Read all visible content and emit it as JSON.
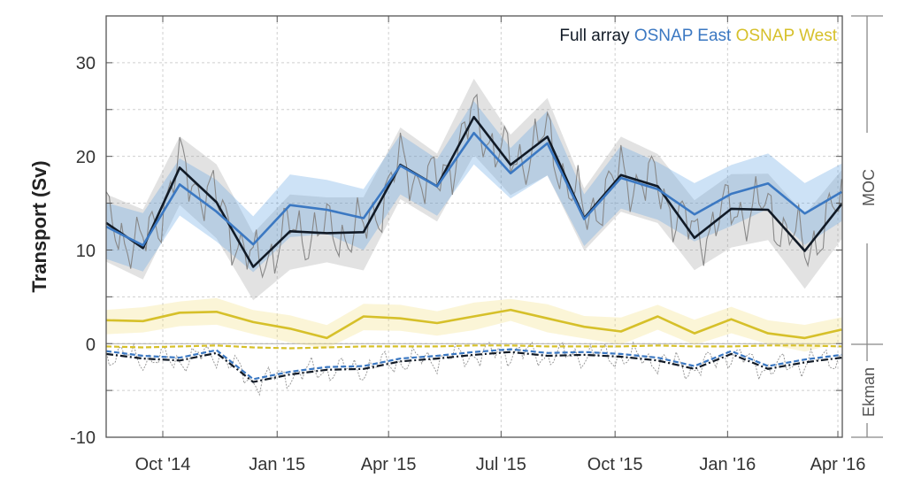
{
  "chart_data": {
    "type": "line",
    "title": "",
    "xlabel": "",
    "ylabel": "Transport (Sv)",
    "ylim": [
      -10,
      35
    ],
    "yticks": {
      "values": [
        -10,
        0,
        10,
        20,
        30
      ],
      "labels": [
        "-10",
        "0",
        "10",
        "20",
        "30"
      ],
      "minor_step": 5
    },
    "x_months": [
      "Aug 2014",
      "Sep 2014",
      "Oct 2014",
      "Nov 2014",
      "Dec 2014",
      "Jan 2015",
      "Feb 2015",
      "Mar 2015",
      "Apr 2015",
      "May 2015",
      "Jun 2015",
      "Jul 2015",
      "Aug 2015",
      "Sep 2015",
      "Oct 2015",
      "Nov 2015",
      "Dec 2015",
      "Jan 2016",
      "Feb 2016",
      "Mar 2016",
      "Apr 2016"
    ],
    "xlim_month_index": [
      0,
      20.02
    ],
    "xticks": {
      "labels": [
        "Oct '14",
        "Jan '15",
        "Apr '15",
        "Jul '15",
        "Oct '15",
        "Jan '16",
        "Apr '16"
      ],
      "month_index": [
        1.54,
        4.65,
        7.68,
        10.74,
        13.84,
        16.9,
        19.9
      ]
    },
    "grid": true,
    "legend": {
      "placement": "top-right",
      "entries": [
        "Full array",
        "OSNAP East",
        "OSNAP West"
      ]
    },
    "colors": {
      "full": "#111a26",
      "east": "#3b78c2",
      "west": "#d6c02a",
      "daily": "#888888"
    },
    "series": [
      {
        "name": "Full array",
        "component": "MOC",
        "values": [
          12.9,
          10.2,
          18.8,
          15.1,
          8.2,
          12.0,
          11.8,
          11.9,
          19.1,
          16.8,
          24.2,
          19.1,
          22.1,
          13.4,
          18.0,
          16.8,
          11.3,
          14.4,
          14.3,
          9.9,
          14.9
        ],
        "uncertainty": 3.6
      },
      {
        "name": "OSNAP East",
        "component": "MOC",
        "values": [
          12.5,
          10.5,
          17.0,
          14.1,
          10.6,
          14.8,
          14.3,
          13.4,
          19.0,
          16.8,
          22.5,
          18.2,
          21.4,
          13.3,
          17.7,
          16.5,
          13.8,
          16.0,
          17.1,
          13.9,
          16.2
        ],
        "uncertainty": 3.0
      },
      {
        "name": "OSNAP West",
        "component": "MOC",
        "values": [
          2.5,
          2.4,
          3.3,
          3.4,
          2.3,
          1.6,
          0.6,
          2.9,
          2.7,
          2.2,
          2.9,
          3.6,
          2.7,
          1.8,
          1.3,
          2.9,
          1.1,
          2.6,
          1.1,
          0.6,
          1.5
        ],
        "uncertainty": 1.3
      },
      {
        "name": "Full array",
        "component": "Ekman",
        "values": [
          -1.1,
          -1.6,
          -1.8,
          -1.0,
          -4.1,
          -3.3,
          -2.8,
          -2.7,
          -1.9,
          -1.6,
          -1.2,
          -0.9,
          -1.3,
          -1.2,
          -1.4,
          -1.8,
          -2.7,
          -1.1,
          -2.7,
          -2.0,
          -1.5
        ]
      },
      {
        "name": "OSNAP East",
        "component": "Ekman",
        "values": [
          -0.8,
          -1.3,
          -1.5,
          -0.7,
          -3.8,
          -3.0,
          -2.5,
          -2.4,
          -1.6,
          -1.3,
          -0.9,
          -0.6,
          -1.0,
          -0.9,
          -1.1,
          -1.5,
          -2.4,
          -0.8,
          -2.4,
          -1.7,
          -1.2
        ]
      },
      {
        "name": "OSNAP West",
        "component": "Ekman",
        "values": [
          -0.3,
          -0.4,
          -0.3,
          -0.2,
          -0.4,
          -0.5,
          -0.4,
          -0.3,
          -0.3,
          -0.3,
          -0.2,
          -0.2,
          -0.3,
          -0.3,
          -0.3,
          -0.2,
          -0.3,
          -0.3,
          -0.2,
          -0.2,
          -0.3
        ]
      }
    ],
    "side_labels": [
      "MOC",
      "Ekman"
    ]
  }
}
